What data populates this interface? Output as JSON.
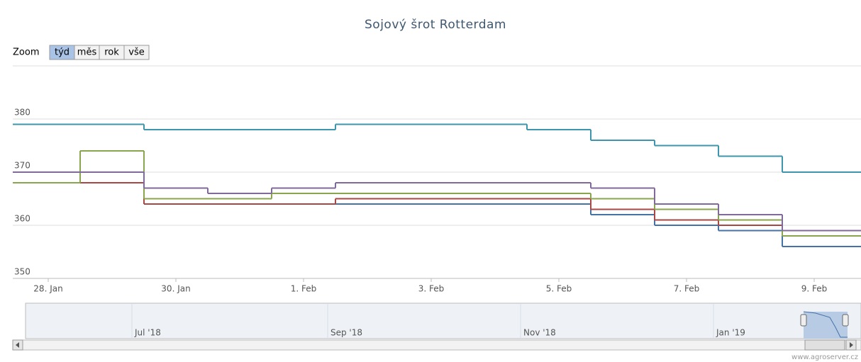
{
  "chart_data": {
    "type": "line",
    "step": true,
    "title": "Sojový šrot Rotterdam",
    "zoom": {
      "label": "Zoom",
      "buttons": [
        "týd",
        "měs",
        "rok",
        "vše"
      ],
      "selected": 0
    },
    "categories": [
      "28. Jan",
      null,
      "30. Jan",
      null,
      "1. Feb",
      null,
      "3. Feb",
      null,
      "5. Feb",
      null,
      "7. Feb",
      null,
      "9. Feb"
    ],
    "series": [
      {
        "color": "#4572A7",
        "values": [
          368,
          368,
          364,
          364,
          364,
          364,
          364,
          364,
          364,
          362,
          360,
          359,
          356
        ]
      },
      {
        "color": "#AA4643",
        "values": [
          368,
          368,
          364,
          364,
          364,
          365,
          365,
          365,
          365,
          363,
          361,
          360,
          358
        ]
      },
      {
        "color": "#89A54E",
        "values": [
          368,
          374,
          365,
          365,
          366,
          366,
          366,
          366,
          366,
          365,
          363,
          361,
          358
        ]
      },
      {
        "color": "#80699B",
        "values": [
          370,
          370,
          367,
          366,
          367,
          368,
          368,
          368,
          368,
          367,
          364,
          362,
          359
        ]
      },
      {
        "color": "#3D96AE",
        "values": [
          379,
          379,
          378,
          378,
          378,
          379,
          379,
          379,
          378,
          376,
          375,
          373,
          370
        ]
      }
    ],
    "ylim": [
      350,
      390
    ],
    "yticks": [
      350,
      360,
      370,
      380
    ],
    "grid": true,
    "navigator": {
      "labels": [
        "Jul '18",
        "Sep '18",
        "Nov '18",
        "Jan '19"
      ]
    },
    "credit": "www.agroserver.cz"
  }
}
